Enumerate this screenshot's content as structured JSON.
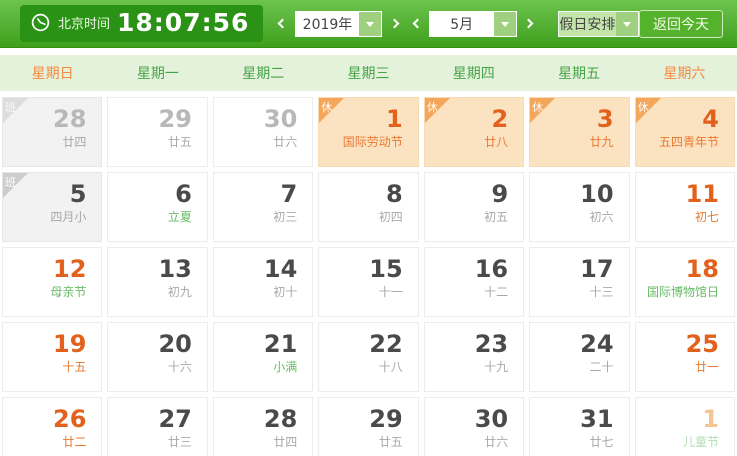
{
  "toolbar": {
    "clock_label": "北京时间",
    "time": "18:07:56",
    "year_select": {
      "value": "2019年"
    },
    "month_select": {
      "value": "5月"
    },
    "holiday_select": {
      "value": "假日安排"
    },
    "today_button_label": "返回今天"
  },
  "icons": {
    "clock": "circle-clock",
    "chevron_left": "‹",
    "chevron_right": "›",
    "dropdown_arrow": "▼"
  },
  "calendar": {
    "weekdays": [
      {
        "label": "星期日",
        "weekend": true
      },
      {
        "label": "星期一",
        "weekend": false
      },
      {
        "label": "星期二",
        "weekend": false
      },
      {
        "label": "星期三",
        "weekend": false
      },
      {
        "label": "星期四",
        "weekend": false
      },
      {
        "label": "星期五",
        "weekend": false
      },
      {
        "label": "星期六",
        "weekend": true
      }
    ],
    "cells": [
      {
        "day": "28",
        "sub": "廿四",
        "num_style": "gray",
        "sub_style": "gray",
        "bg": "work",
        "badge": "班",
        "badge_style": "work",
        "badge_faded": true
      },
      {
        "day": "29",
        "sub": "廿五",
        "num_style": "gray",
        "sub_style": "gray",
        "bg": "normal",
        "badge": ""
      },
      {
        "day": "30",
        "sub": "廿六",
        "num_style": "gray",
        "sub_style": "gray",
        "bg": "normal",
        "badge": ""
      },
      {
        "day": "1",
        "sub": "国际劳动节",
        "num_style": "orange",
        "sub_style": "orange",
        "bg": "rest",
        "badge": "休",
        "badge_style": "rest"
      },
      {
        "day": "2",
        "sub": "廿八",
        "num_style": "orange",
        "sub_style": "orange",
        "bg": "rest",
        "badge": "休",
        "badge_style": "rest"
      },
      {
        "day": "3",
        "sub": "廿九",
        "num_style": "orange",
        "sub_style": "orange",
        "bg": "rest",
        "badge": "休",
        "badge_style": "rest"
      },
      {
        "day": "4",
        "sub": "五四青年节",
        "num_style": "orange",
        "sub_style": "orange",
        "bg": "rest",
        "badge": "休",
        "badge_style": "rest"
      },
      {
        "day": "5",
        "sub": "四月小",
        "num_style": "dark",
        "sub_style": "gray",
        "bg": "work",
        "badge": "班",
        "badge_style": "work"
      },
      {
        "day": "6",
        "sub": "立夏",
        "num_style": "dark",
        "sub_style": "green",
        "bg": "normal",
        "badge": ""
      },
      {
        "day": "7",
        "sub": "初三",
        "num_style": "dark",
        "sub_style": "gray",
        "bg": "normal",
        "badge": ""
      },
      {
        "day": "8",
        "sub": "初四",
        "num_style": "dark",
        "sub_style": "gray",
        "bg": "normal",
        "badge": ""
      },
      {
        "day": "9",
        "sub": "初五",
        "num_style": "dark",
        "sub_style": "gray",
        "bg": "normal",
        "badge": ""
      },
      {
        "day": "10",
        "sub": "初六",
        "num_style": "dark",
        "sub_style": "gray",
        "bg": "normal",
        "badge": ""
      },
      {
        "day": "11",
        "sub": "初七",
        "num_style": "orange",
        "sub_style": "orange",
        "bg": "normal",
        "badge": ""
      },
      {
        "day": "12",
        "sub": "母亲节",
        "num_style": "orange",
        "sub_style": "green",
        "bg": "normal",
        "badge": ""
      },
      {
        "day": "13",
        "sub": "初九",
        "num_style": "dark",
        "sub_style": "gray",
        "bg": "normal",
        "badge": ""
      },
      {
        "day": "14",
        "sub": "初十",
        "num_style": "dark",
        "sub_style": "gray",
        "bg": "normal",
        "badge": ""
      },
      {
        "day": "15",
        "sub": "十一",
        "num_style": "dark",
        "sub_style": "gray",
        "bg": "normal",
        "badge": ""
      },
      {
        "day": "16",
        "sub": "十二",
        "num_style": "dark",
        "sub_style": "gray",
        "bg": "normal",
        "badge": ""
      },
      {
        "day": "17",
        "sub": "十三",
        "num_style": "dark",
        "sub_style": "gray",
        "bg": "normal",
        "badge": ""
      },
      {
        "day": "18",
        "sub": "国际博物馆日",
        "num_style": "orange",
        "sub_style": "green",
        "bg": "normal",
        "badge": ""
      },
      {
        "day": "19",
        "sub": "十五",
        "num_style": "orange",
        "sub_style": "orange",
        "bg": "normal",
        "badge": ""
      },
      {
        "day": "20",
        "sub": "十六",
        "num_style": "dark",
        "sub_style": "gray",
        "bg": "normal",
        "badge": ""
      },
      {
        "day": "21",
        "sub": "小满",
        "num_style": "dark",
        "sub_style": "green",
        "bg": "normal",
        "badge": ""
      },
      {
        "day": "22",
        "sub": "十八",
        "num_style": "dark",
        "sub_style": "gray",
        "bg": "normal",
        "badge": ""
      },
      {
        "day": "23",
        "sub": "十九",
        "num_style": "dark",
        "sub_style": "gray",
        "bg": "normal",
        "badge": ""
      },
      {
        "day": "24",
        "sub": "二十",
        "num_style": "dark",
        "sub_style": "gray",
        "bg": "normal",
        "badge": ""
      },
      {
        "day": "25",
        "sub": "廿一",
        "num_style": "orange",
        "sub_style": "orange",
        "bg": "normal",
        "badge": ""
      },
      {
        "day": "26",
        "sub": "廿二",
        "num_style": "orange",
        "sub_style": "orange",
        "bg": "normal",
        "badge": ""
      },
      {
        "day": "27",
        "sub": "廿三",
        "num_style": "dark",
        "sub_style": "gray",
        "bg": "normal",
        "badge": ""
      },
      {
        "day": "28",
        "sub": "廿四",
        "num_style": "dark",
        "sub_style": "gray",
        "bg": "normal",
        "badge": ""
      },
      {
        "day": "29",
        "sub": "廿五",
        "num_style": "dark",
        "sub_style": "gray",
        "bg": "normal",
        "badge": ""
      },
      {
        "day": "30",
        "sub": "廿六",
        "num_style": "dark",
        "sub_style": "gray",
        "bg": "normal",
        "badge": ""
      },
      {
        "day": "31",
        "sub": "廿七",
        "num_style": "dark",
        "sub_style": "gray",
        "bg": "normal",
        "badge": ""
      },
      {
        "day": "1",
        "sub": "儿童节",
        "num_style": "orange-faded",
        "sub_style": "green-faded",
        "bg": "normal",
        "badge": ""
      }
    ]
  },
  "colors": {
    "bar_top": "#6cc44d",
    "bar_bottom": "#3fa01d",
    "time_box_bg": "#2a9214",
    "select_arrow_bg": "#9ed07f",
    "holiday_box_bg": "#c3e5a9",
    "today_btn_bg": "#54b22c",
    "header_bg": "#e4f2dc",
    "weekday_green": "#46a446",
    "weekday_orange": "#f28a42",
    "num_dark": "#4a4a4a",
    "num_gray": "#b8b8b8",
    "num_orange": "#e2611c",
    "num_orange_faded": "#f5c495",
    "sub_gray": "#a9a9a9",
    "sub_green": "#67bb67",
    "sub_orange": "#e87a33",
    "sub_green_faded": "#b3dcb3",
    "cell_rest_bg": "#fbe3c2",
    "cell_work_bg": "#f2f2f2",
    "badge_rest": "#f4a75b",
    "badge_work": "#cdcdcd"
  }
}
